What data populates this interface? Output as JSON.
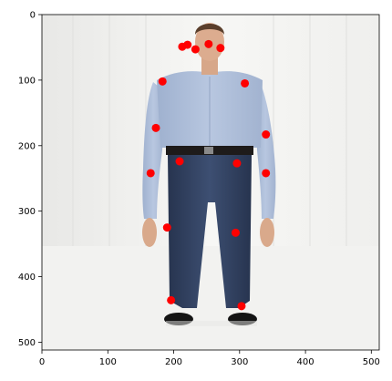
{
  "chart_data": {
    "type": "scatter",
    "title": "",
    "xlabel": "",
    "ylabel": "",
    "xlim": [
      0,
      512
    ],
    "ylim": [
      512,
      0
    ],
    "x_ticks": [
      0,
      100,
      200,
      300,
      400,
      500
    ],
    "y_ticks": [
      0,
      100,
      200,
      300,
      400,
      500
    ],
    "grid": false,
    "legend": "none",
    "background_image": "standing man, light blue button-down shirt, dark jeans, black shoes, white studio background",
    "marker_color": "#ff0000",
    "series": [
      {
        "points": [
          {
            "x": 213,
            "y": 49
          },
          {
            "x": 221,
            "y": 46
          },
          {
            "x": 233,
            "y": 53
          },
          {
            "x": 253,
            "y": 45
          },
          {
            "x": 271,
            "y": 51
          },
          {
            "x": 183,
            "y": 102
          },
          {
            "x": 308,
            "y": 105
          },
          {
            "x": 173,
            "y": 173
          },
          {
            "x": 340,
            "y": 183
          },
          {
            "x": 165,
            "y": 242
          },
          {
            "x": 340,
            "y": 242
          },
          {
            "x": 209,
            "y": 224
          },
          {
            "x": 296,
            "y": 227
          },
          {
            "x": 190,
            "y": 325
          },
          {
            "x": 294,
            "y": 333
          },
          {
            "x": 196,
            "y": 436
          },
          {
            "x": 303,
            "y": 445
          }
        ]
      }
    ]
  },
  "axes": {
    "x_tick_labels": [
      "0",
      "100",
      "200",
      "300",
      "400",
      "500"
    ],
    "y_tick_labels": [
      "0",
      "100",
      "200",
      "300",
      "400",
      "500"
    ]
  }
}
